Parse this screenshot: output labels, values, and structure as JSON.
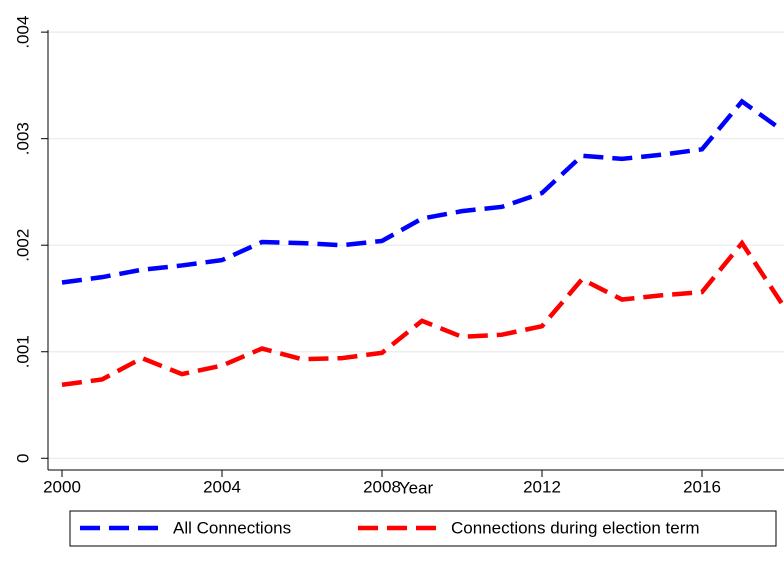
{
  "chart_data": {
    "type": "line",
    "x_label": "Year",
    "x": [
      2000,
      2001,
      2002,
      2003,
      2004,
      2005,
      2006,
      2007,
      2008,
      2009,
      2010,
      2011,
      2012,
      2013,
      2014,
      2015,
      2016,
      2017,
      2018
    ],
    "series": [
      {
        "name": "All Connections",
        "color": "#0000ff",
        "values": [
          0.00165,
          0.0017,
          0.00177,
          0.00181,
          0.00186,
          0.00203,
          0.00202,
          0.002,
          0.00204,
          0.00225,
          0.00232,
          0.00236,
          0.00249,
          0.00284,
          0.00281,
          0.00285,
          0.0029,
          0.00335,
          0.00308
        ]
      },
      {
        "name": "Connections during election term",
        "color": "#ff0000",
        "values": [
          0.00069,
          0.00074,
          0.00094,
          0.00079,
          0.00087,
          0.00103,
          0.00093,
          0.00094,
          0.00099,
          0.00129,
          0.00114,
          0.00116,
          0.00124,
          0.00168,
          0.00149,
          0.00153,
          0.00156,
          0.00202,
          0.00145
        ]
      }
    ],
    "xlim": [
      1999.65,
      2018.05
    ],
    "xticks": [
      2000,
      2004,
      2008,
      2012,
      2016
    ],
    "ylim": [
      -0.00011,
      0.00402
    ],
    "yticks": [
      0,
      {
        "value": 0.001,
        "label": ".001"
      },
      {
        "value": 0.002,
        "label": ".002"
      },
      {
        "value": 0.003,
        "label": ".003"
      },
      {
        "value": 0.004,
        "label": ".004"
      }
    ],
    "grid": true,
    "legend": "bottom"
  }
}
